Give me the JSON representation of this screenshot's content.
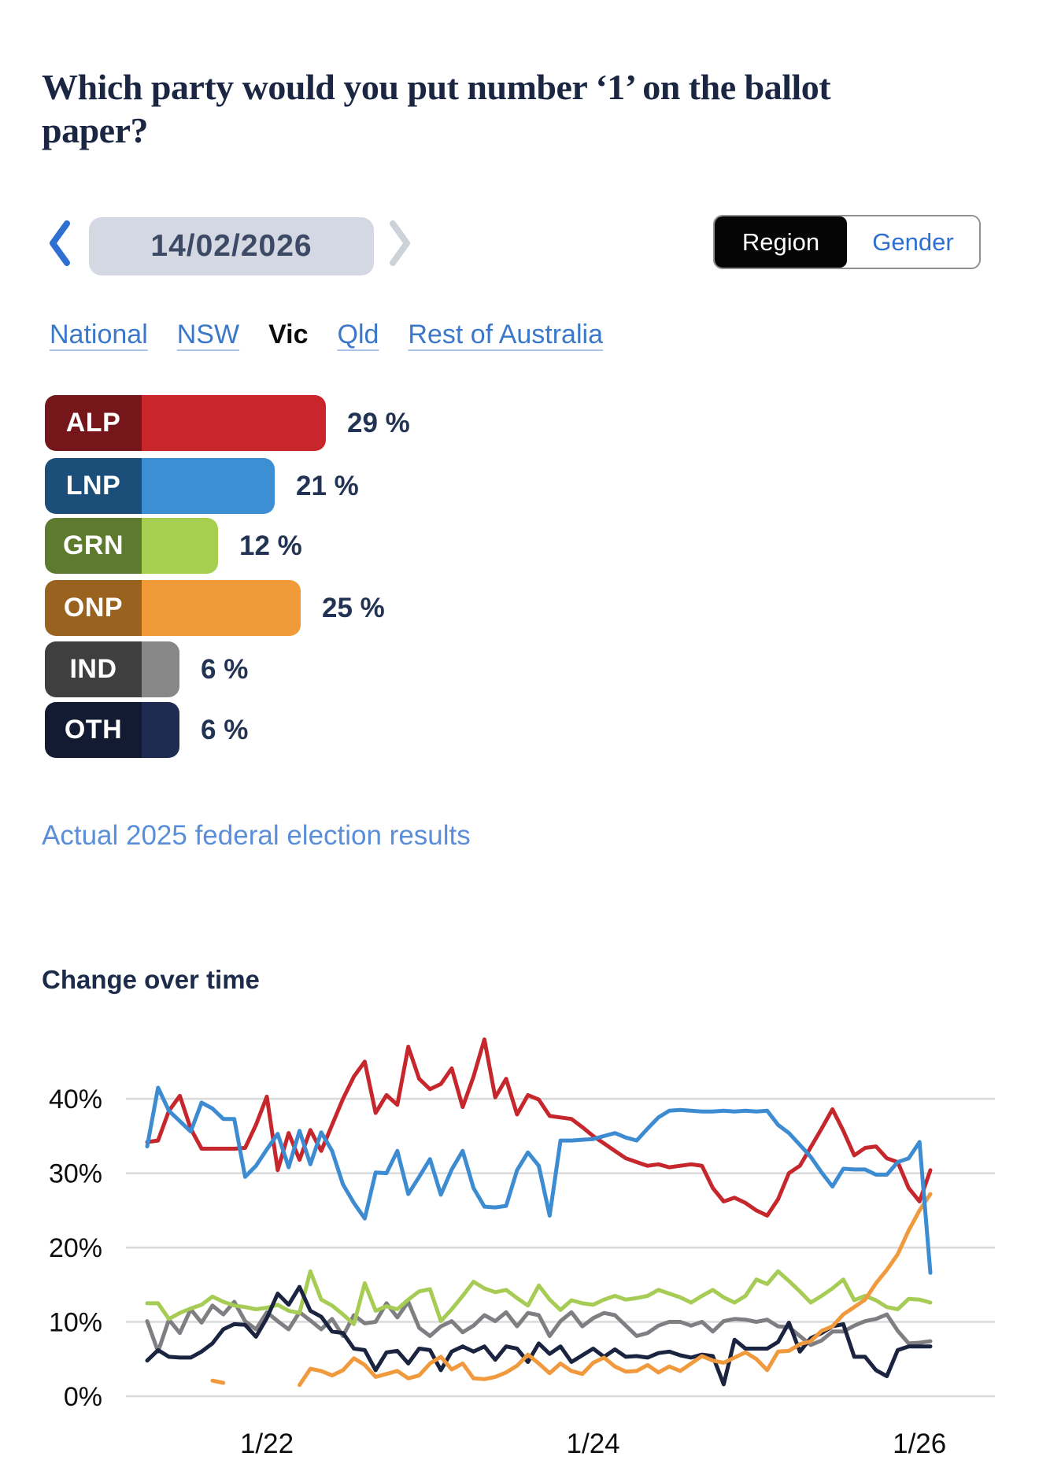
{
  "header": {
    "title": "Which party would you put number ‘1’ on the ballot paper?"
  },
  "date_nav": {
    "date": "14/02/2026",
    "prev_icon": "chevron-left",
    "next_icon": "chevron-right"
  },
  "view_toggle": {
    "options": [
      {
        "label": "Region",
        "selected": true
      },
      {
        "label": "Gender",
        "selected": false
      }
    ]
  },
  "region_tabs": [
    {
      "label": "National",
      "selected": false
    },
    {
      "label": "NSW",
      "selected": false
    },
    {
      "label": "Vic",
      "selected": true
    },
    {
      "label": "Qld",
      "selected": false
    },
    {
      "label": "Rest of Australia",
      "selected": false
    }
  ],
  "results_link": {
    "label": "Actual 2025 federal election results"
  },
  "trend_heading": "Change over time",
  "colors": {
    "accent_blue": "#2e6fd0",
    "link_blue": "#5b8ed8",
    "text_navy": "#1b2742",
    "grid_gray": "#dadada"
  },
  "chart_data": [
    {
      "type": "bar",
      "orientation": "horizontal",
      "title": "Which party would you put number ‘1’ on the ballot paper? — Vic, 14/02/2026",
      "categories": [
        "ALP",
        "LNP",
        "GRN",
        "ONP",
        "IND",
        "OTH"
      ],
      "values": [
        29,
        21,
        12,
        25,
        6,
        6
      ],
      "value_labels": [
        "29 %",
        "21 %",
        "12 %",
        "25 %",
        "6 %",
        "6 %"
      ],
      "chip_colors": [
        "#75161b",
        "#1b4e78",
        "#5e7a2e",
        "#99621f",
        "#3f3f3f",
        "#131b33"
      ],
      "bar_colors": [
        "#c9262c",
        "#3d8fd4",
        "#a6ce4f",
        "#f09b38",
        "#878787",
        "#1f2b50"
      ],
      "xlim": [
        0,
        30
      ]
    },
    {
      "type": "line",
      "title": "Change over time",
      "ylabel": "",
      "xlabel": "",
      "grid": "horizontal",
      "ylim": [
        0,
        49
      ],
      "y_ticks": [
        "0%",
        "10%",
        "20%",
        "30%",
        "40%"
      ],
      "y_tick_values": [
        0,
        10,
        20,
        30,
        40
      ],
      "x_tick_labels": [
        "1/22",
        "1/24",
        "1/26"
      ],
      "x_tick_indices": [
        11,
        41,
        71
      ],
      "draw_order": [
        "IND",
        "GRN",
        "OTH",
        "ONP",
        "ALP",
        "LNP"
      ],
      "series": [
        {
          "name": "ALP",
          "color": "#c5272d",
          "values": [
            34.2,
            34.4,
            38.4,
            40.4,
            36.0,
            33.3,
            33.3,
            33.3,
            33.3,
            33.4,
            36.5,
            40.3,
            30.4,
            35.4,
            31.8,
            35.8,
            33.0,
            36.5,
            40.0,
            43.0,
            45.0,
            38.1,
            40.5,
            39.2,
            47.0,
            42.7,
            41.3,
            42.0,
            44.1,
            38.9,
            43.0,
            48.0,
            40.2,
            42.7,
            37.9,
            40.5,
            39.9,
            37.7,
            37.5,
            37.3,
            36.2,
            35.0,
            34.0,
            33.0,
            32.0,
            31.5,
            31.0,
            31.2,
            30.8,
            31.0,
            31.2,
            31.0,
            28.0,
            26.2,
            26.7,
            26.0,
            25.0,
            24.3,
            26.5,
            30.0,
            31.0,
            33.5,
            36.0,
            38.6,
            35.7,
            32.4,
            33.4,
            33.6,
            32.0,
            31.5,
            28.0,
            26.2,
            30.4
          ]
        },
        {
          "name": "LNP",
          "color": "#3d8bd1",
          "values": [
            33.6,
            41.5,
            38.4,
            37.0,
            35.6,
            39.5,
            38.7,
            37.3,
            37.3,
            29.5,
            31.0,
            33.2,
            35.3,
            30.8,
            35.7,
            31.2,
            35.5,
            33.0,
            28.5,
            26.0,
            23.9,
            30.1,
            30.0,
            33.0,
            27.2,
            29.5,
            31.9,
            27.1,
            30.5,
            33.0,
            28.0,
            25.5,
            25.4,
            25.6,
            30.4,
            32.8,
            31.0,
            24.3,
            34.4,
            34.4,
            34.5,
            34.6,
            35.0,
            35.4,
            34.8,
            34.4,
            36.0,
            37.5,
            38.4,
            38.5,
            38.4,
            38.3,
            38.3,
            38.4,
            38.3,
            38.4,
            38.3,
            38.4,
            36.5,
            35.4,
            33.8,
            32.2,
            30.1,
            28.2,
            30.6,
            30.5,
            30.5,
            29.8,
            29.8,
            31.5,
            32.0,
            34.2,
            16.6
          ]
        },
        {
          "name": "GRN",
          "color": "#a6cc55",
          "values": [
            12.5,
            12.5,
            10.4,
            11.2,
            11.8,
            12.3,
            13.4,
            12.7,
            12.2,
            12.0,
            11.7,
            11.9,
            12.3,
            11.5,
            11.2,
            16.8,
            13.0,
            12.2,
            11.0,
            9.7,
            15.2,
            11.5,
            12.1,
            11.7,
            13.0,
            14.1,
            14.4,
            10.1,
            11.7,
            13.5,
            15.4,
            14.5,
            14.0,
            14.3,
            13.2,
            12.2,
            14.9,
            13.0,
            11.6,
            12.9,
            12.5,
            12.3,
            13.0,
            13.5,
            13.0,
            13.2,
            13.5,
            14.3,
            13.8,
            13.3,
            12.6,
            13.5,
            14.3,
            13.3,
            12.6,
            13.5,
            15.7,
            15.1,
            16.8,
            15.5,
            14.1,
            12.6,
            13.5,
            14.5,
            15.7,
            12.9,
            13.5,
            12.9,
            12.0,
            11.7,
            13.1,
            13.0,
            12.6
          ]
        },
        {
          "name": "ONP",
          "color": "#f0993d",
          "values": [
            null,
            null,
            null,
            null,
            null,
            null,
            2.1,
            1.8,
            null,
            null,
            null,
            null,
            null,
            null,
            1.5,
            3.7,
            3.4,
            2.8,
            3.5,
            5.1,
            4.2,
            2.6,
            3.0,
            3.4,
            2.4,
            2.8,
            4.4,
            5.3,
            3.6,
            4.4,
            2.4,
            2.3,
            2.6,
            3.2,
            4.1,
            5.6,
            4.4,
            3.1,
            4.4,
            3.4,
            3.0,
            4.5,
            5.2,
            4.0,
            3.3,
            3.4,
            4.2,
            3.2,
            4.0,
            3.4,
            4.4,
            5.4,
            4.8,
            4.5,
            5.2,
            5.9,
            5.0,
            3.5,
            6.0,
            6.1,
            7.0,
            7.4,
            8.8,
            9.4,
            11.0,
            12.0,
            13.0,
            15.2,
            17.0,
            19.1,
            22.3,
            25.0,
            27.2
          ]
        },
        {
          "name": "IND",
          "color": "#7f7f83",
          "values": [
            10.1,
            6.0,
            10.3,
            8.5,
            11.7,
            9.9,
            12.2,
            11.0,
            12.7,
            10.1,
            9.0,
            11.3,
            10.1,
            9.0,
            11.3,
            10.2,
            9.0,
            10.4,
            8.1,
            10.9,
            9.8,
            10.0,
            12.5,
            10.6,
            12.7,
            9.2,
            8.1,
            9.4,
            10.1,
            8.6,
            9.5,
            10.9,
            10.1,
            11.3,
            9.4,
            11.2,
            10.9,
            8.1,
            10.1,
            11.3,
            9.4,
            10.5,
            11.2,
            10.9,
            9.5,
            8.1,
            8.5,
            9.5,
            10.0,
            10.0,
            9.5,
            10.0,
            8.7,
            10.1,
            10.4,
            10.3,
            10.0,
            10.3,
            9.4,
            9.3,
            8.1,
            6.9,
            7.5,
            8.7,
            8.7,
            9.5,
            10.1,
            10.4,
            11.0,
            8.8,
            7.1,
            7.2,
            7.4
          ]
        },
        {
          "name": "OTH",
          "color": "#1a2440",
          "values": [
            4.8,
            6.2,
            5.3,
            5.2,
            5.2,
            6.0,
            7.1,
            9.0,
            9.7,
            9.6,
            8.0,
            10.5,
            13.8,
            12.3,
            14.7,
            11.5,
            10.7,
            8.7,
            8.5,
            6.4,
            6.2,
            3.5,
            5.9,
            6.1,
            4.4,
            6.4,
            6.2,
            3.5,
            6.0,
            6.7,
            6.0,
            6.7,
            4.9,
            6.7,
            6.4,
            4.6,
            7.1,
            5.7,
            6.7,
            4.6,
            5.5,
            6.4,
            5.3,
            6.3,
            5.3,
            5.4,
            5.2,
            5.8,
            6.0,
            5.5,
            5.2,
            5.6,
            5.4,
            1.6,
            7.6,
            6.4,
            6.4,
            6.4,
            7.3,
            9.9,
            6.0,
            7.8,
            8.5,
            9.4,
            9.7,
            5.3,
            5.3,
            3.5,
            2.7,
            6.2,
            6.7,
            6.7,
            6.7
          ]
        }
      ]
    }
  ]
}
